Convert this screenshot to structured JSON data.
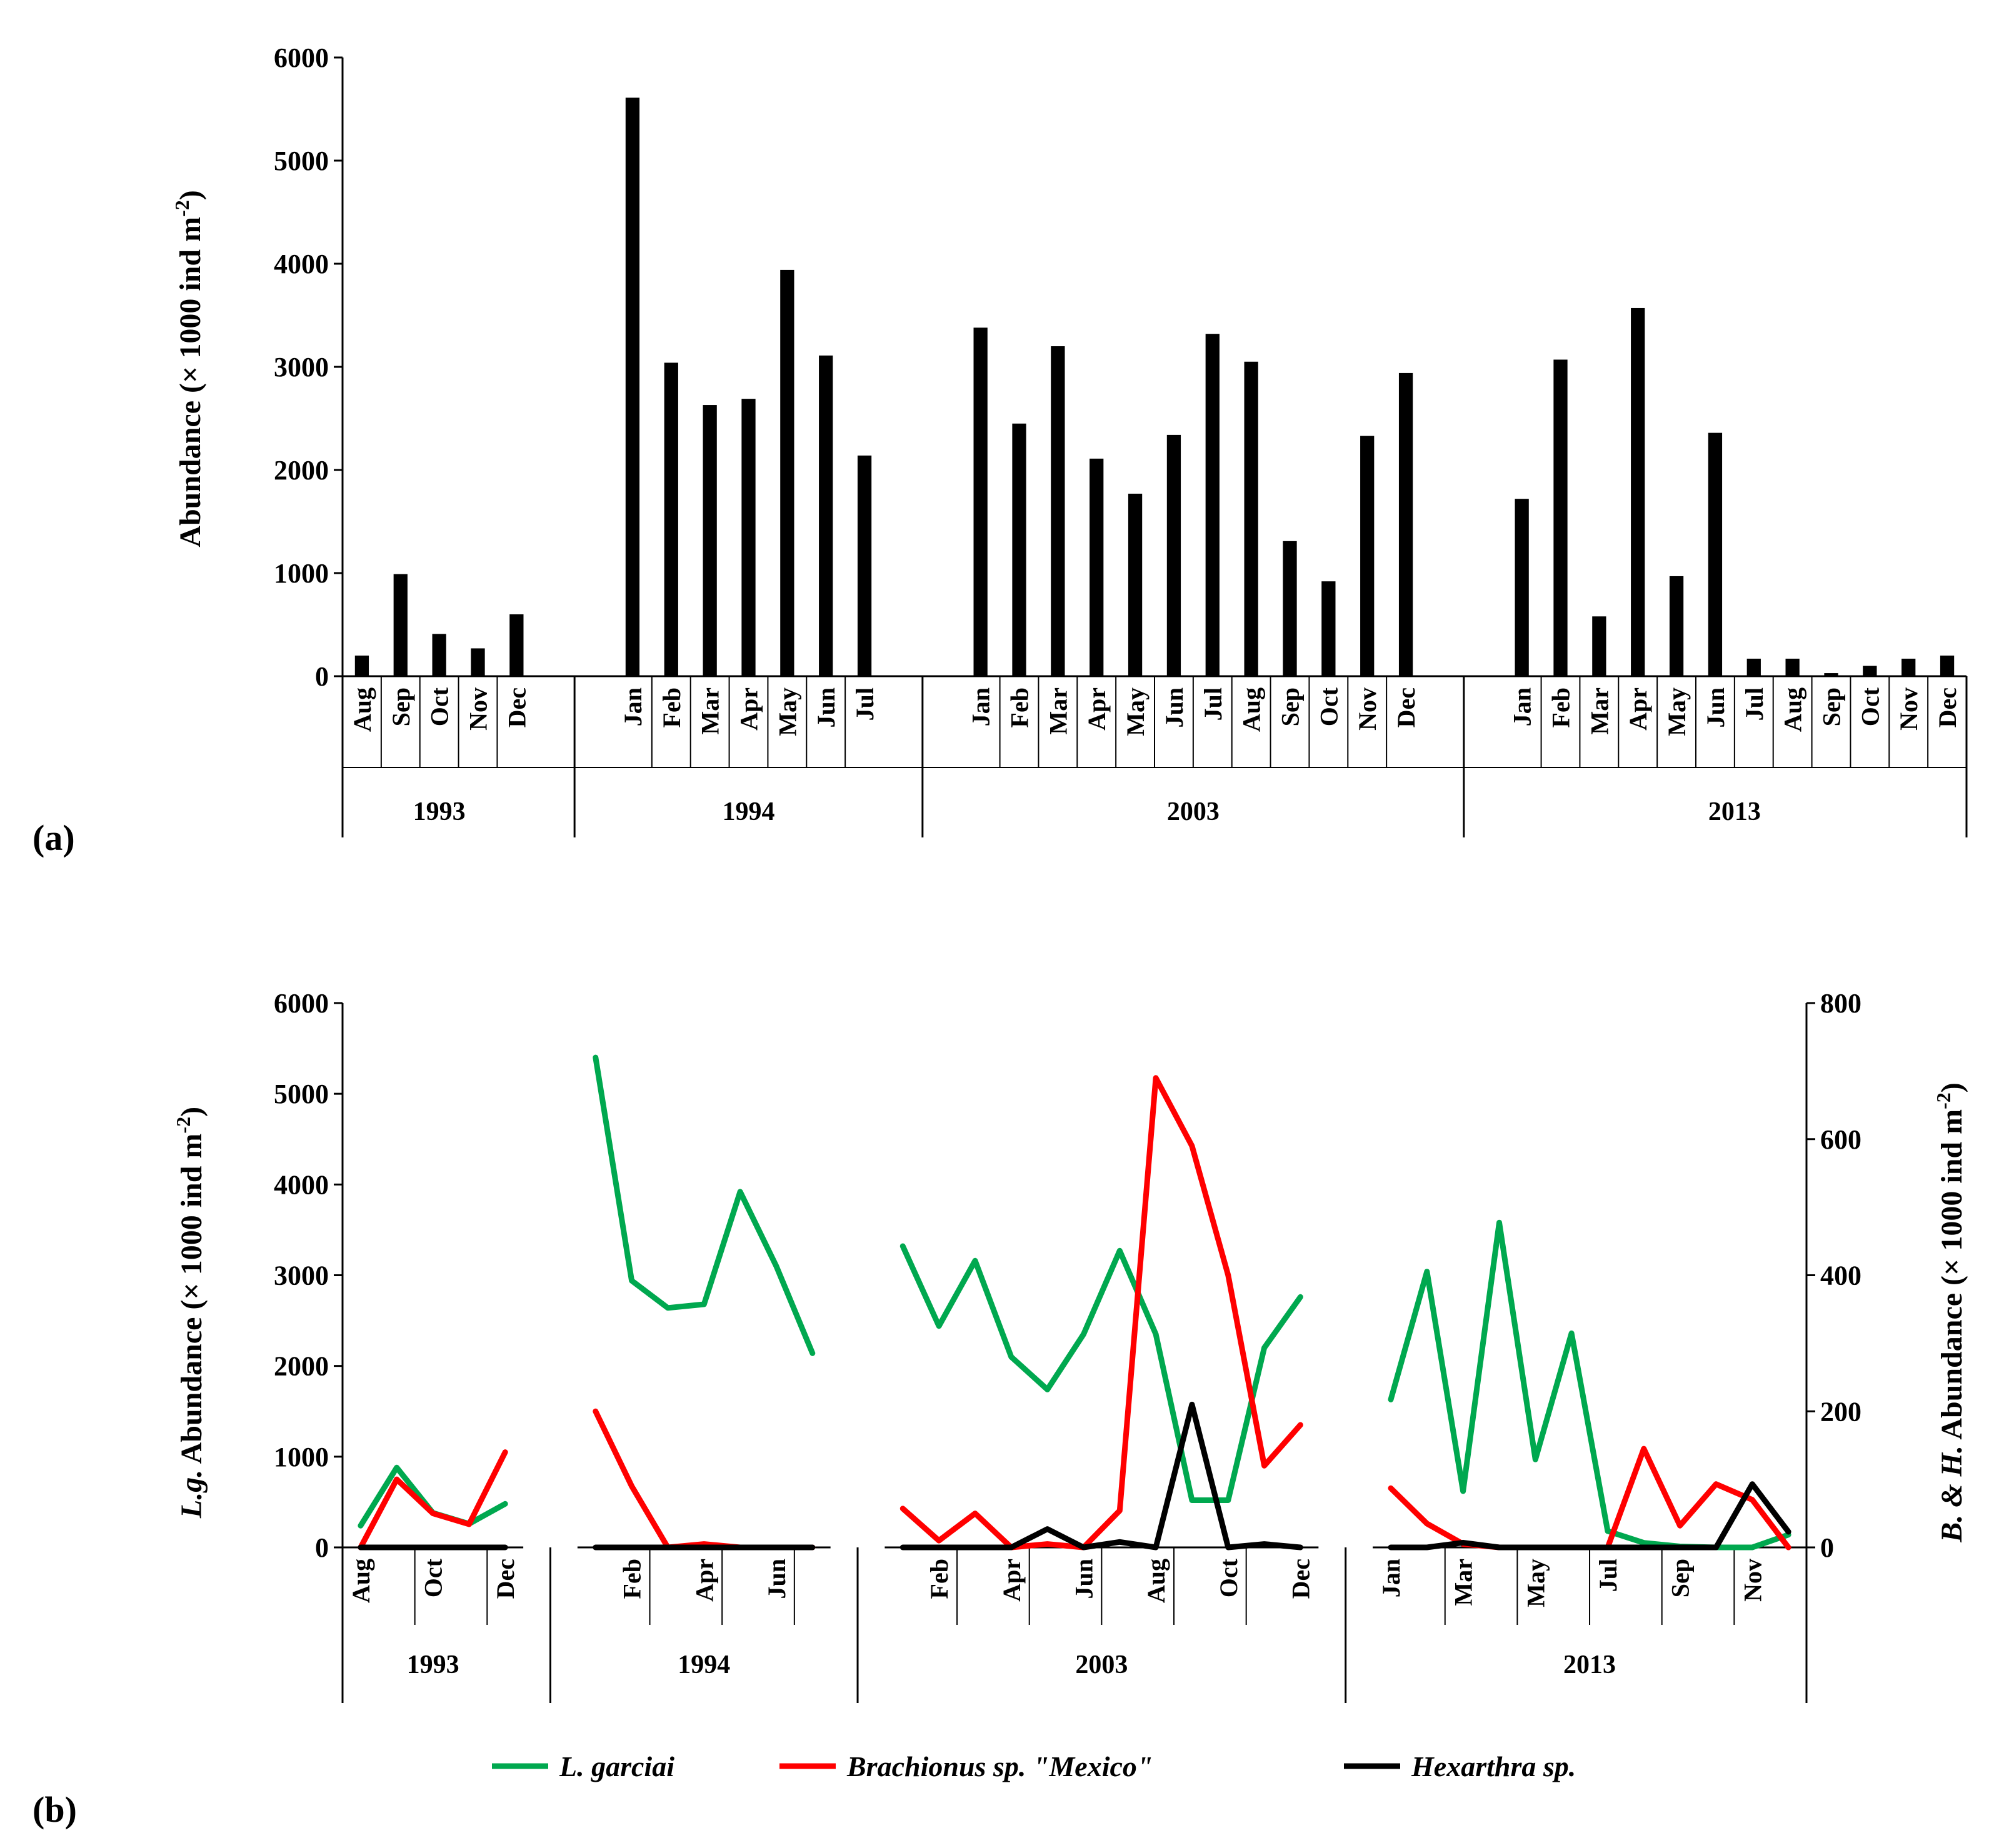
{
  "chart_data": [
    {
      "type": "bar",
      "panel_label": "(a)",
      "ylabel_main": "Abundance (× 1000 ind m",
      "ylabel_sup": "-2",
      "ylabel_end": ")",
      "ylim": [
        0,
        6000
      ],
      "yticks": [
        0,
        1000,
        2000,
        3000,
        4000,
        5000,
        6000
      ],
      "groups": [
        {
          "year": "1993",
          "months": [
            "Aug",
            "Sep",
            "Oct",
            "Nov",
            "Dec"
          ],
          "values": [
            200,
            990,
            410,
            270,
            600
          ]
        },
        {
          "year": "1994",
          "months": [
            "Jan",
            "Feb",
            "Mar",
            "Apr",
            "May",
            "Jun",
            "Jul"
          ],
          "values": [
            5610,
            3040,
            2630,
            2690,
            3940,
            3110,
            2140
          ]
        },
        {
          "year": "2003",
          "months": [
            "Jan",
            "Feb",
            "Mar",
            "Apr",
            "May",
            "Jun",
            "Jul",
            "Aug",
            "Sep",
            "Oct",
            "Nov",
            "Dec"
          ],
          "values": [
            3380,
            2450,
            3200,
            2110,
            1770,
            2340,
            3320,
            3050,
            1310,
            920,
            2330,
            2940
          ]
        },
        {
          "year": "2013",
          "months": [
            "Jan",
            "Feb",
            "Mar",
            "Apr",
            "May",
            "Jun",
            "Jul",
            "Aug",
            "Sep",
            "Oct",
            "Nov",
            "Dec"
          ],
          "values": [
            1720,
            3070,
            580,
            3570,
            970,
            2360,
            170,
            170,
            30,
            100,
            170,
            200
          ]
        }
      ]
    },
    {
      "type": "line",
      "panel_label": "(b)",
      "ylabel_left_main": "Abundance (× 1000 ind m",
      "ylabel_left_prefix": "L.g.",
      "ylabel_right_prefix": "B. & H.",
      "ylabel_sup": "-2",
      "ylabel_end": ")",
      "ylim_left": [
        0,
        6000
      ],
      "yticks_left": [
        0,
        1000,
        2000,
        3000,
        4000,
        5000,
        6000
      ],
      "ylim_right": [
        0,
        800
      ],
      "yticks_right": [
        0,
        200,
        400,
        600,
        800
      ],
      "groups": [
        {
          "year": "1993",
          "labeled_months": [
            "Aug",
            "",
            "Oct",
            "",
            "Dec"
          ]
        },
        {
          "year": "1994",
          "labeled_months": [
            "",
            "Feb",
            "",
            "Apr",
            "",
            "Jun",
            ""
          ]
        },
        {
          "year": "2003",
          "labeled_months": [
            "",
            "Feb",
            "",
            "Apr",
            "",
            "Jun",
            "",
            "Aug",
            "",
            "Oct",
            "",
            "Dec"
          ]
        },
        {
          "year": "2013",
          "labeled_months": [
            "Jan",
            "",
            "Mar",
            "",
            "May",
            "",
            "Jul",
            "",
            "Sep",
            "",
            "Nov",
            ""
          ]
        }
      ],
      "series": [
        {
          "name": "L. garciai",
          "color": "#00a84f",
          "axis": "left",
          "values": [
            [
              240,
              880,
              380,
              260,
              480
            ],
            [
              5400,
              2940,
              2640,
              2680,
              3920,
              3100,
              2140
            ],
            [
              3320,
              2440,
              3160,
              2100,
              1740,
              2350,
              3270,
              2350,
              520,
              520,
              2200,
              2760
            ],
            [
              1630,
              3040,
              620,
              3580,
              970,
              2360,
              180,
              50,
              10,
              0,
              0,
              140
            ]
          ]
        },
        {
          "name": "Brachionus sp. \"Mexico\"",
          "color": "#ff0000",
          "axis": "right",
          "values": [
            [
              0,
              100,
              50,
              34,
              140
            ],
            [
              200,
              90,
              0,
              5,
              0,
              0,
              0
            ],
            [
              57,
              10,
              50,
              0,
              5,
              0,
              54,
              690,
              590,
              400,
              120,
              180
            ],
            [
              87,
              35,
              5,
              0,
              0,
              0,
              0,
              145,
              32,
              93,
              70,
              0
            ]
          ]
        },
        {
          "name": "Hexarthra sp.",
          "color": "#000000",
          "axis": "right",
          "values": [
            [
              0,
              0,
              0,
              0,
              0
            ],
            [
              0,
              0,
              0,
              0,
              0,
              0,
              0
            ],
            [
              0,
              0,
              0,
              0,
              27,
              0,
              8,
              0,
              210,
              0,
              5,
              0
            ],
            [
              0,
              0,
              7,
              0,
              0,
              0,
              0,
              0,
              0,
              0,
              93,
              23
            ]
          ]
        }
      ],
      "legend": [
        "L. garciai",
        "Brachionus sp. \"Mexico\"",
        "Hexarthra sp."
      ],
      "legend_position": "bottom"
    }
  ]
}
